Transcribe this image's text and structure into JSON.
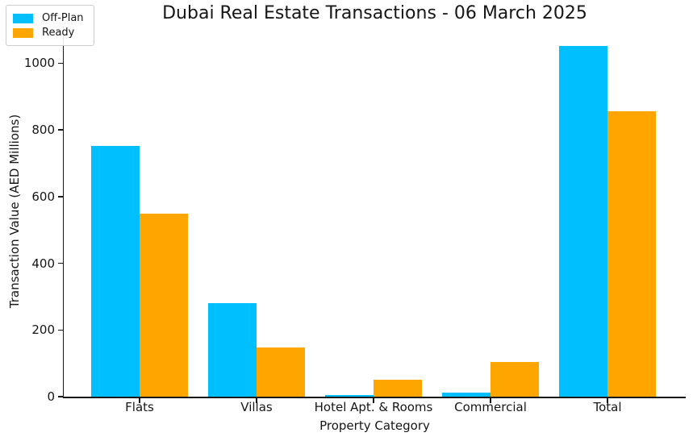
{
  "chart_data": {
    "type": "bar",
    "title": "Dubai Real Estate Transactions - 06 March 2025",
    "xlabel": "Property Category",
    "ylabel": "Transaction Value (AED Millions)",
    "categories": [
      "Flats",
      "Villas",
      "Hotel Apt. & Rooms",
      "Commercial",
      "Total"
    ],
    "series": [
      {
        "name": "Off-Plan",
        "color": "#00BFFF",
        "values": [
          753,
          280,
          5,
          13,
          1053
        ]
      },
      {
        "name": "Ready",
        "color": "#FFA500",
        "values": [
          550,
          148,
          50,
          105,
          855
        ]
      }
    ],
    "ylim": [
      0,
      1110
    ],
    "yticks": [
      0,
      200,
      400,
      600,
      800,
      1000
    ],
    "grid": false,
    "legend_position": "upper left",
    "background_color": "#ffffff",
    "spine_color": "#1a1a1a"
  }
}
